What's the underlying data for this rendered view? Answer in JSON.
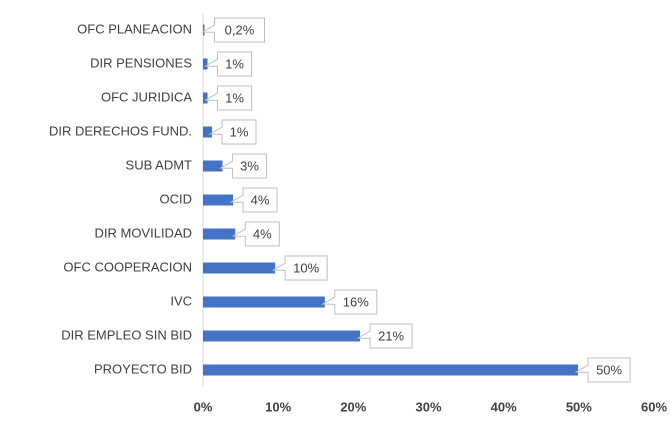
{
  "chart_data": {
    "type": "bar",
    "orientation": "horizontal",
    "categories": [
      "OFC PLANEACION",
      "DIR PENSIONES",
      "OFC JURIDICA",
      "DIR DERECHOS FUND.",
      "SUB ADMT",
      "OCID",
      "DIR MOVILIDAD",
      "OFC COOPERACION",
      "IVC",
      "DIR EMPLEO SIN BID",
      "PROYECTO BID"
    ],
    "values": [
      0.2,
      0.6,
      0.6,
      1.2,
      2.6,
      4.0,
      4.3,
      9.6,
      16.2,
      20.9,
      49.9
    ],
    "value_labels": [
      "0,2%",
      "1%",
      "1%",
      "1%",
      "3%",
      "4%",
      "4%",
      "10%",
      "16%",
      "21%",
      "50%"
    ],
    "color": "#4472c4",
    "xlim": [
      0,
      60
    ],
    "xticks": [
      {
        "value": 0,
        "label": "0%"
      },
      {
        "value": 10,
        "label": "10%"
      },
      {
        "value": 20,
        "label": "20%"
      },
      {
        "value": 30,
        "label": "30%"
      },
      {
        "value": 40,
        "label": "40%"
      },
      {
        "value": 50,
        "label": "50%"
      },
      {
        "value": 60,
        "label": "60%"
      }
    ],
    "grid": false
  }
}
